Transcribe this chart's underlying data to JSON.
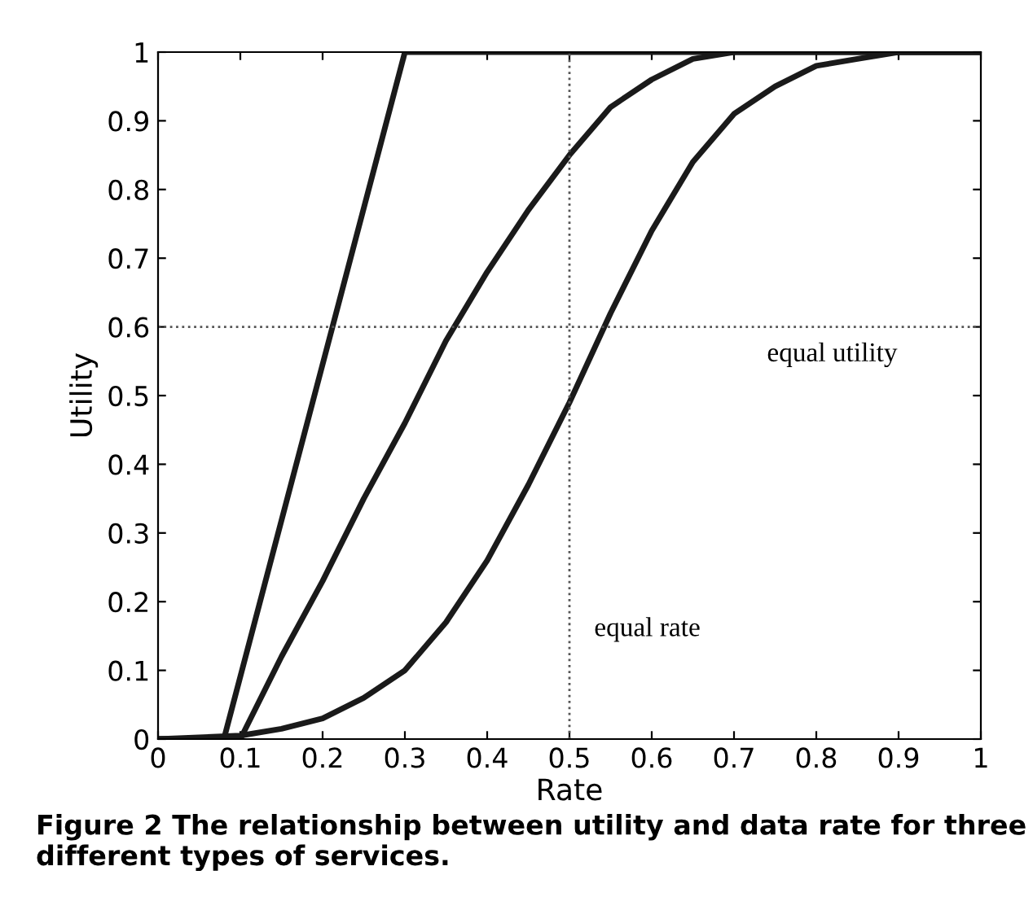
{
  "chart_data": {
    "type": "line",
    "xlabel": "Rate",
    "ylabel": "Utility",
    "xlim": [
      0,
      1
    ],
    "ylim": [
      0,
      1
    ],
    "xticks": [
      0,
      0.1,
      0.2,
      0.3,
      0.4,
      0.5,
      0.6,
      0.7,
      0.8,
      0.9,
      1
    ],
    "yticks": [
      0,
      0.1,
      0.2,
      0.3,
      0.4,
      0.5,
      0.6,
      0.7,
      0.8,
      0.9,
      1
    ],
    "grid": false,
    "line_style": "solid",
    "series": [
      {
        "color": "#1a1a1a",
        "x": [
          0,
          0.08,
          0.3,
          1
        ],
        "values": [
          0,
          0,
          1,
          1
        ]
      },
      {
        "color": "#1a1a1a",
        "x": [
          0,
          0.1,
          0.15,
          0.2,
          0.25,
          0.3,
          0.35,
          0.4,
          0.45,
          0.5,
          0.55,
          0.6,
          0.65,
          0.7,
          1
        ],
        "values": [
          0,
          0,
          0.12,
          0.23,
          0.35,
          0.46,
          0.58,
          0.68,
          0.77,
          0.85,
          0.92,
          0.96,
          0.99,
          1,
          1
        ]
      },
      {
        "color": "#1a1a1a",
        "x": [
          0,
          0.1,
          0.15,
          0.2,
          0.25,
          0.3,
          0.35,
          0.4,
          0.45,
          0.5,
          0.55,
          0.6,
          0.65,
          0.7,
          0.75,
          0.8,
          0.85,
          0.9,
          1
        ],
        "values": [
          0,
          0.005,
          0.015,
          0.03,
          0.06,
          0.1,
          0.17,
          0.26,
          0.37,
          0.49,
          0.62,
          0.74,
          0.84,
          0.91,
          0.95,
          0.98,
          0.99,
          1,
          1
        ]
      }
    ],
    "ref_lines": [
      {
        "axis": "x",
        "value": 0.5,
        "line_style": "dotted",
        "color": "#555555"
      },
      {
        "axis": "y",
        "value": 0.6,
        "line_style": "dotted",
        "color": "#555555"
      }
    ],
    "annotations": [
      "equal utility",
      "equal rate",
      "Figure 2 The relationship between utility and data rate for three different types of services."
    ]
  }
}
